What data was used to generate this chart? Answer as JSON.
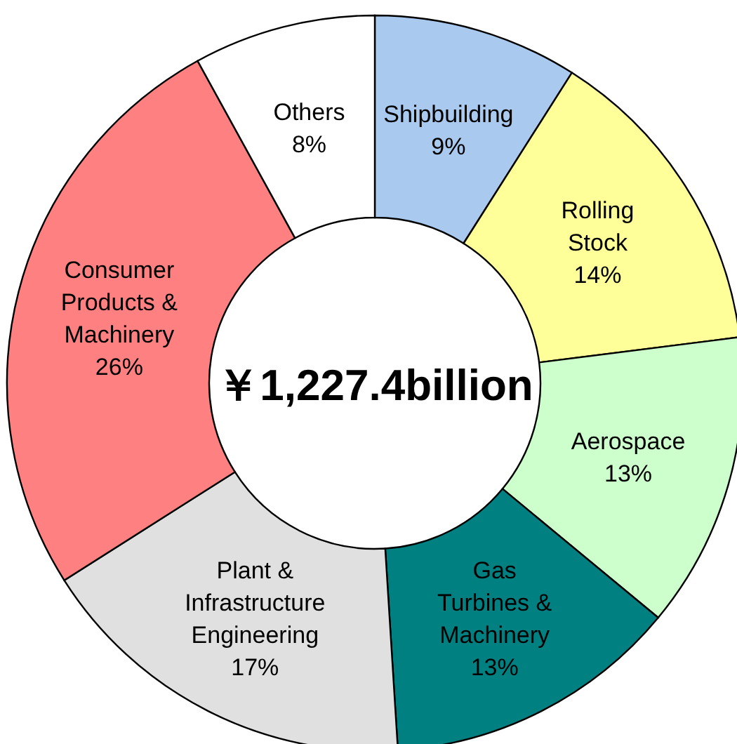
{
  "chart_data": {
    "type": "donut",
    "categories": [
      "Shipbuilding",
      "Rolling Stock",
      "Aerospace",
      "Gas Turbines & Machinery",
      "Plant & Infrastructure Engineering",
      "Consumer Products & Machinery",
      "Others"
    ],
    "values": [
      9,
      14,
      13,
      13,
      17,
      26,
      8
    ],
    "value_labels": [
      "9%",
      "14%",
      "13%",
      "13%",
      "17%",
      "26%",
      "8%"
    ],
    "colors": [
      "#a9c9ef",
      "#ffff99",
      "#ccffcc",
      "#008080",
      "#e0e0e0",
      "#ff8080",
      "#ffffff"
    ],
    "annotations": [
      "￥1,227.4billion"
    ]
  }
}
